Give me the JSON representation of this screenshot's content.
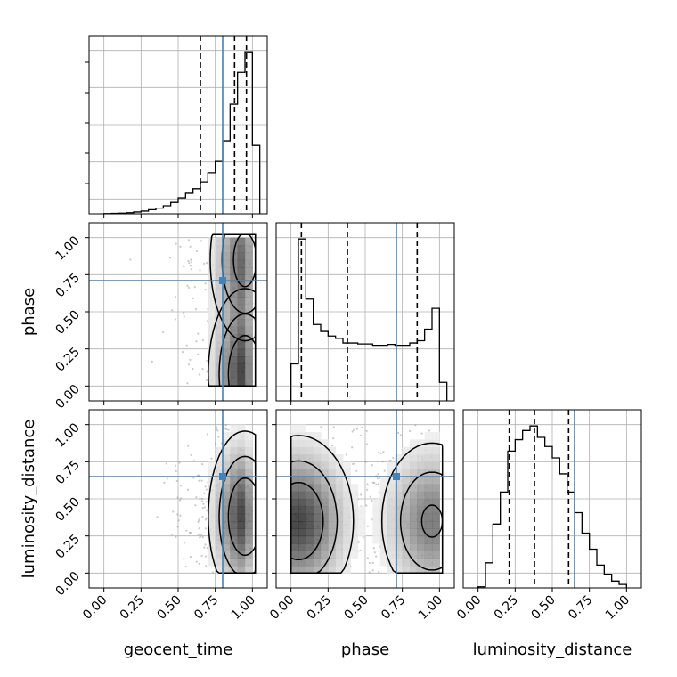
{
  "chart_data": {
    "type": "corner",
    "parameters": [
      "geocent_time",
      "phase",
      "luminosity_distance"
    ],
    "tick_labels": [
      "0.00",
      "0.25",
      "0.50",
      "0.75",
      "1.00"
    ],
    "range": [
      -0.1,
      1.1
    ],
    "truths": {
      "geocent_time": 0.8,
      "phase": 0.71,
      "luminosity_distance": 0.65
    },
    "truth_color": "#4682b4",
    "grid": true,
    "diagonal": [
      {
        "parameter": "geocent_time",
        "bin_edges": [
          0.0,
          0.05,
          0.1,
          0.15,
          0.2,
          0.25,
          0.3,
          0.35,
          0.4,
          0.45,
          0.5,
          0.55,
          0.6,
          0.65,
          0.7,
          0.75,
          0.8,
          0.85,
          0.9,
          0.95,
          1.0,
          1.05
        ],
        "counts": [
          0.1,
          0.2,
          0.3,
          0.5,
          0.8,
          1.2,
          1.8,
          2.5,
          3.5,
          5.0,
          7.0,
          9.0,
          11.0,
          14.0,
          18.0,
          23.0,
          32.0,
          48.0,
          62.0,
          71.0,
          30.0
        ],
        "quantiles": [
          0.65,
          0.88,
          0.96
        ]
      },
      {
        "parameter": "phase",
        "bin_edges": [
          0.0,
          0.05,
          0.1,
          0.15,
          0.2,
          0.25,
          0.3,
          0.35,
          0.4,
          0.45,
          0.5,
          0.55,
          0.6,
          0.65,
          0.7,
          0.75,
          0.8,
          0.85,
          0.9,
          0.95,
          1.0,
          1.05
        ],
        "counts": [
          0.8,
          3.5,
          2.2,
          1.65,
          1.5,
          1.4,
          1.35,
          1.25,
          1.25,
          1.23,
          1.23,
          1.2,
          1.2,
          1.22,
          1.2,
          1.2,
          1.25,
          1.3,
          1.55,
          2.0,
          0.4
        ],
        "quantiles": [
          0.07,
          0.38,
          0.85
        ]
      },
      {
        "parameter": "luminosity_distance",
        "bin_edges": [
          0.0,
          0.05,
          0.1,
          0.15,
          0.2,
          0.25,
          0.3,
          0.35,
          0.4,
          0.45,
          0.5,
          0.55,
          0.6,
          0.65,
          0.7,
          0.75,
          0.8,
          0.85,
          0.9,
          0.95,
          1.0
        ],
        "counts": [
          0.05,
          1.1,
          2.8,
          4.2,
          6.0,
          6.5,
          6.9,
          7.1,
          6.6,
          6.2,
          5.7,
          5.0,
          4.2,
          3.3,
          2.4,
          1.7,
          1.0,
          0.6,
          0.3,
          0.15
        ],
        "quantiles": [
          0.21,
          0.38,
          0.61
        ]
      }
    ],
    "pairs": [
      {
        "x": "geocent_time",
        "y": "phase",
        "density_peaks": [
          [
            0.95,
            0.08,
            1.0
          ],
          [
            0.95,
            0.85,
            0.8
          ]
        ]
      },
      {
        "x": "geocent_time",
        "y": "luminosity_distance",
        "density_peaks": [
          [
            0.95,
            0.38,
            1.0
          ]
        ]
      },
      {
        "x": "phase",
        "y": "luminosity_distance",
        "density_peaks": [
          [
            0.05,
            0.35,
            1.0
          ],
          [
            0.95,
            0.35,
            0.7
          ]
        ]
      }
    ]
  }
}
